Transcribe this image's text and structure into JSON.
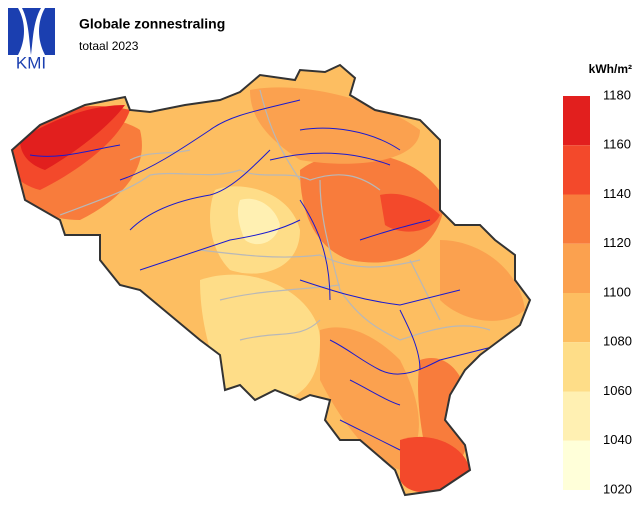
{
  "logo": "KMI",
  "title": "Globale zonnestraling",
  "subtitle": "totaal 2023",
  "legend": {
    "unit": "kWh/m²",
    "ticks": [
      1180,
      1160,
      1140,
      1120,
      1100,
      1080,
      1060,
      1040,
      1020
    ],
    "colors": [
      "#e21f1e",
      "#f3492b",
      "#f87c3c",
      "#fba14f",
      "#fdbe61",
      "#fedd88",
      "#fff0b2",
      "#ffffd9"
    ]
  }
}
